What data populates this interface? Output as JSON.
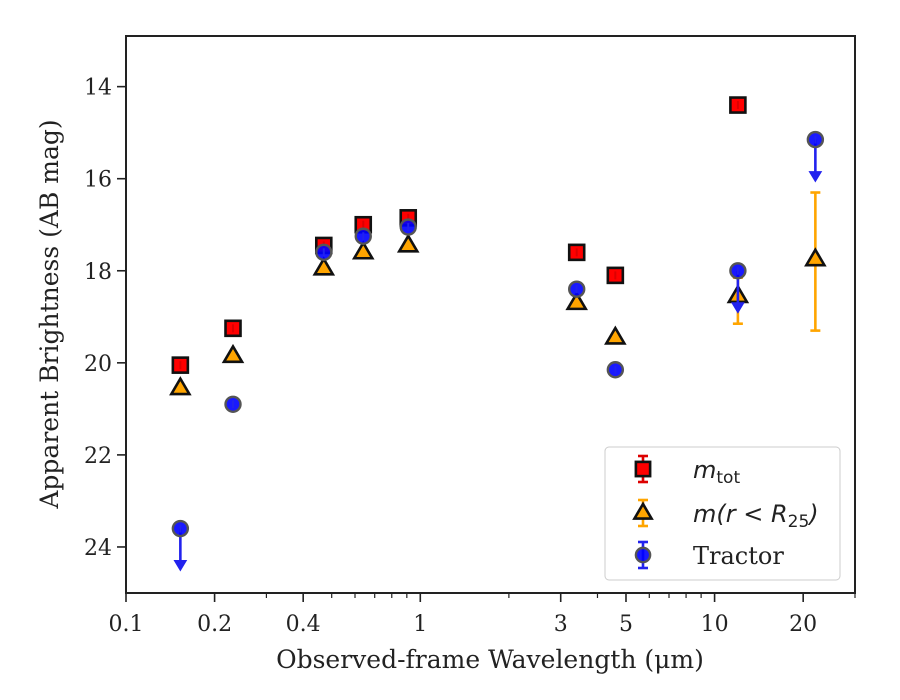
{
  "chart_data": {
    "type": "scatter",
    "title": "",
    "xlabel": "Observed-frame Wavelength (μm)",
    "ylabel": "Apparent Brightness (AB mag)",
    "xscale": "log",
    "xlim": [
      0.1,
      30
    ],
    "ylim": [
      25.0,
      12.9
    ],
    "y_inverted": true,
    "xticks": [
      0.1,
      0.2,
      0.4,
      1,
      3,
      5,
      10,
      20
    ],
    "xtick_labels": [
      "0.1",
      "0.2",
      "0.4",
      "1",
      "3",
      "5",
      "10",
      "20"
    ],
    "yticks": [
      14,
      16,
      18,
      20,
      22,
      24
    ],
    "ytick_labels": [
      "14",
      "16",
      "18",
      "20",
      "22",
      "24"
    ],
    "grid": false,
    "legend_position": "bottom-right",
    "series": [
      {
        "key": "mtot",
        "name": "m_tot",
        "marker": "square",
        "color": "#ff0000",
        "errcolor": "#dd0000",
        "points": [
          {
            "x": 0.153,
            "y": 20.05
          },
          {
            "x": 0.231,
            "y": 19.25
          },
          {
            "x": 0.47,
            "y": 17.45
          },
          {
            "x": 0.64,
            "y": 17.0
          },
          {
            "x": 0.91,
            "y": 16.85
          },
          {
            "x": 3.4,
            "y": 17.6
          },
          {
            "x": 4.6,
            "y": 18.1
          },
          {
            "x": 12.0,
            "y": 14.4
          }
        ]
      },
      {
        "key": "mr25",
        "name": "m(r < R25)",
        "marker": "triangle",
        "color": "#ffa500",
        "errcolor": "#ffa500",
        "points": [
          {
            "x": 0.153,
            "y": 20.55
          },
          {
            "x": 0.231,
            "y": 19.85
          },
          {
            "x": 0.47,
            "y": 17.95
          },
          {
            "x": 0.64,
            "y": 17.6
          },
          {
            "x": 0.91,
            "y": 17.45
          },
          {
            "x": 3.4,
            "y": 18.7
          },
          {
            "x": 4.6,
            "y": 19.45
          },
          {
            "x": 12.0,
            "y": 18.55,
            "err": [
              0.4,
              0.6
            ]
          },
          {
            "x": 22.0,
            "y": 17.75,
            "err": [
              1.45,
              1.55
            ]
          }
        ]
      },
      {
        "key": "tractor",
        "name": "Tractor",
        "marker": "circle",
        "color": "#0000ff",
        "errcolor": "#2222ee",
        "points": [
          {
            "x": 0.153,
            "y": 23.6,
            "upper_limit": true
          },
          {
            "x": 0.231,
            "y": 20.9
          },
          {
            "x": 0.47,
            "y": 17.6
          },
          {
            "x": 0.64,
            "y": 17.25
          },
          {
            "x": 0.91,
            "y": 17.05
          },
          {
            "x": 3.4,
            "y": 18.4
          },
          {
            "x": 4.6,
            "y": 20.15
          },
          {
            "x": 12.0,
            "y": 18.0,
            "upper_limit": true
          },
          {
            "x": 22.0,
            "y": 15.15,
            "upper_limit": true
          }
        ]
      }
    ],
    "legend": [
      {
        "series": "mtot",
        "label_main": "m",
        "label_sub": "tot",
        "label_tail": ""
      },
      {
        "series": "mr25",
        "label_main": "m(r < R",
        "label_sub": "25",
        "label_tail": ")"
      },
      {
        "series": "tractor",
        "label_main": "Tractor",
        "label_sub": "",
        "label_tail": ""
      }
    ]
  }
}
